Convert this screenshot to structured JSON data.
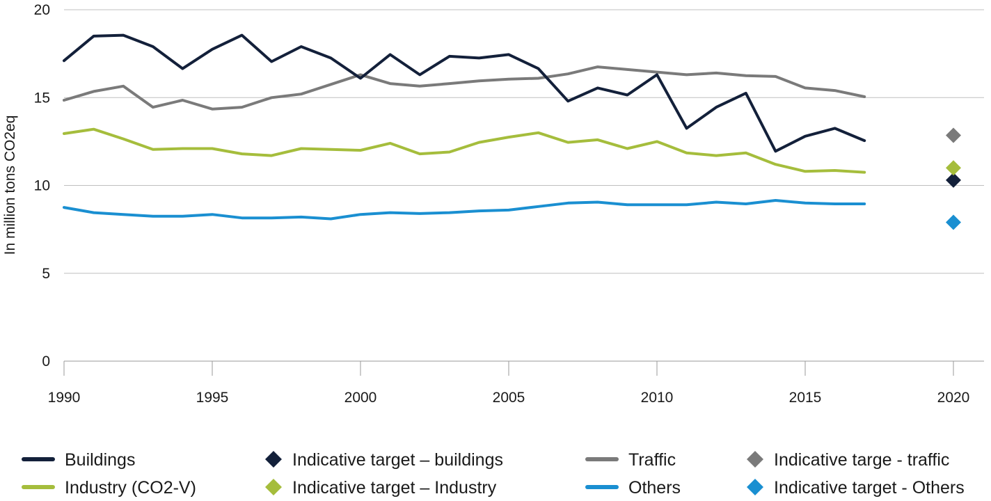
{
  "chart_data": {
    "type": "line",
    "ylabel": "In million tons CO2eq",
    "ylim": [
      0,
      20
    ],
    "yticks": [
      "0",
      "5",
      "10",
      "15",
      "20"
    ],
    "xlim": [
      1990,
      2020
    ],
    "xticks": [
      "1990",
      "1995",
      "2000",
      "2005",
      "2010",
      "2015",
      "2020"
    ],
    "grid": true,
    "legend_position": "bottom",
    "x": [
      1990,
      1991,
      1992,
      1993,
      1994,
      1995,
      1996,
      1997,
      1998,
      1999,
      2000,
      2001,
      2002,
      2003,
      2004,
      2005,
      2006,
      2007,
      2008,
      2009,
      2010,
      2011,
      2012,
      2013,
      2014,
      2015,
      2016,
      2017
    ],
    "series": [
      {
        "name": "Buildings",
        "color": "#13203a",
        "values": [
          17.1,
          18.5,
          18.55,
          17.9,
          16.65,
          17.75,
          18.55,
          17.05,
          17.9,
          17.25,
          16.1,
          17.45,
          16.3,
          17.35,
          17.25,
          17.45,
          16.65,
          14.8,
          15.55,
          15.15,
          16.3,
          13.25,
          14.45,
          15.25,
          11.95,
          12.8,
          13.25,
          12.55
        ]
      },
      {
        "name": "Traffic",
        "color": "#7a7a7a",
        "values": [
          14.85,
          15.35,
          15.65,
          14.45,
          14.85,
          14.35,
          14.45,
          15.0,
          15.2,
          15.75,
          16.3,
          15.8,
          15.65,
          15.8,
          15.95,
          16.05,
          16.1,
          16.35,
          16.75,
          16.6,
          16.45,
          16.3,
          16.4,
          16.25,
          16.2,
          15.55,
          15.4,
          15.05
        ]
      },
      {
        "name": "Industry (CO2-V)",
        "color": "#a5bd3c",
        "values": [
          12.95,
          13.2,
          12.65,
          12.05,
          12.1,
          12.1,
          11.8,
          11.7,
          12.1,
          12.05,
          12.0,
          12.4,
          11.8,
          11.9,
          12.45,
          12.75,
          13.0,
          12.45,
          12.6,
          12.1,
          12.5,
          11.85,
          11.7,
          11.85,
          11.2,
          10.8,
          10.85,
          10.75
        ]
      },
      {
        "name": "Others",
        "color": "#1a8fd1",
        "values": [
          8.75,
          8.45,
          8.35,
          8.25,
          8.25,
          8.35,
          8.15,
          8.15,
          8.2,
          8.1,
          8.35,
          8.45,
          8.4,
          8.45,
          8.55,
          8.6,
          8.8,
          9.0,
          9.05,
          8.9,
          8.9,
          8.9,
          9.05,
          8.95,
          9.15,
          9.0,
          8.95,
          8.95
        ]
      }
    ],
    "targets": [
      {
        "name": "Indicative target – buildings",
        "color": "#13203a",
        "x": 2020,
        "value": 10.3
      },
      {
        "name": "Indicative targe - traffic",
        "color": "#7a7a7a",
        "x": 2020,
        "value": 12.85
      },
      {
        "name": "Indicative target – Industry",
        "color": "#a5bd3c",
        "x": 2020,
        "value": 11.0
      },
      {
        "name": "Indicative target - Others",
        "color": "#1a8fd1",
        "x": 2020,
        "value": 7.9
      }
    ],
    "legend": [
      {
        "label": "Buildings",
        "kind": "line",
        "color": "#13203a"
      },
      {
        "label": "Indicative target – buildings",
        "kind": "diamond",
        "color": "#13203a"
      },
      {
        "label": "Traffic",
        "kind": "line",
        "color": "#7a7a7a"
      },
      {
        "label": "Indicative targe - traffic",
        "kind": "diamond",
        "color": "#7a7a7a"
      },
      {
        "label": "Industry (CO2-V)",
        "kind": "line",
        "color": "#a5bd3c"
      },
      {
        "label": "Indicative target – Industry",
        "kind": "diamond",
        "color": "#a5bd3c"
      },
      {
        "label": "Others",
        "kind": "line",
        "color": "#1a8fd1"
      },
      {
        "label": "Indicative target - Others",
        "kind": "diamond",
        "color": "#1a8fd1"
      }
    ],
    "gridline_color": "#bfbfbf",
    "axis_color": "#9a9a9a"
  }
}
